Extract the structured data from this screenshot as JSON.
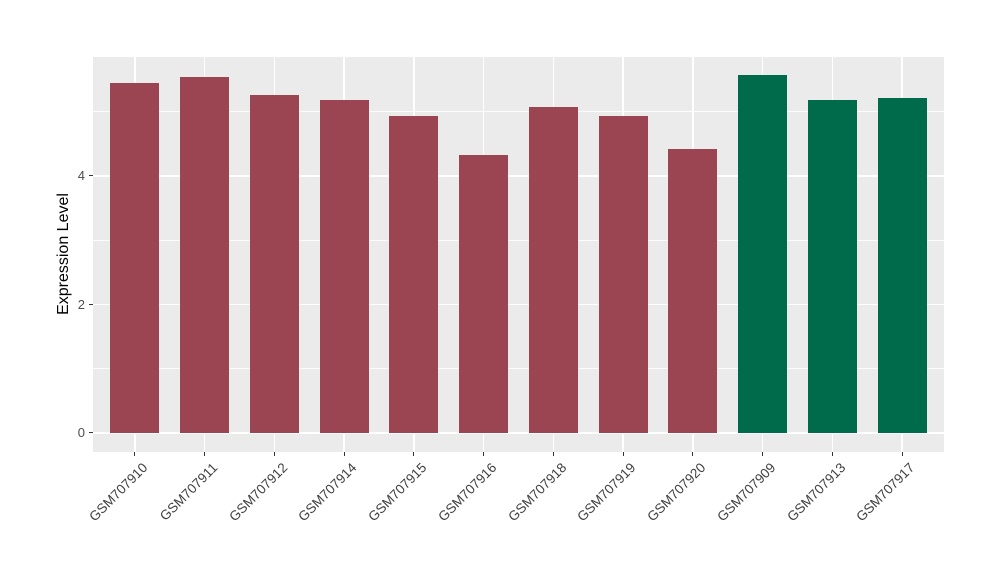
{
  "chart_data": {
    "type": "bar",
    "title": "",
    "xlabel": "",
    "ylabel": "Expression Level",
    "categories": [
      "GSM707910",
      "GSM707911",
      "GSM707912",
      "GSM707914",
      "GSM707915",
      "GSM707916",
      "GSM707918",
      "GSM707919",
      "GSM707920",
      "GSM707909",
      "GSM707913",
      "GSM707917"
    ],
    "values": [
      5.44,
      5.54,
      5.26,
      5.19,
      4.93,
      4.33,
      5.08,
      4.93,
      4.42,
      5.57,
      5.19,
      5.21
    ],
    "bar_colors": [
      "#9A4551",
      "#9A4551",
      "#9A4551",
      "#9A4551",
      "#9A4551",
      "#9A4551",
      "#9A4551",
      "#9A4551",
      "#9A4551",
      "#006B4A",
      "#006B4A",
      "#006B4A"
    ],
    "y_ticks": [
      0,
      2,
      4
    ],
    "y_minor_ticks": [
      1,
      3,
      5
    ],
    "ylim": [
      -0.296,
      5.852
    ],
    "grid": true,
    "legend": "none",
    "panel_background": "#EBEBEB",
    "gridline_color": "#FFFFFF",
    "axis_text_color": "#4D4D4D",
    "tick_mark_color": "#333333",
    "x_tick_angle": 45
  }
}
